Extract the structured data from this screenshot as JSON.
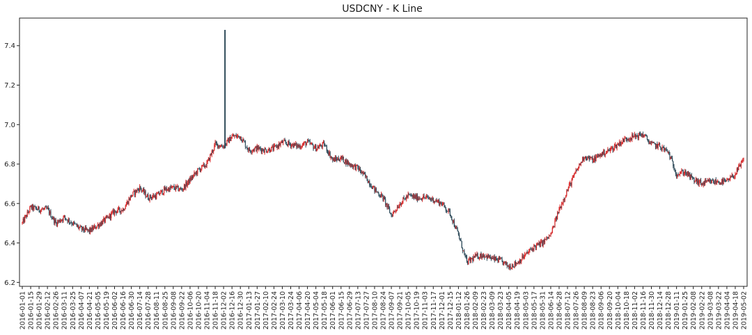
{
  "chart_data": {
    "type": "candlestick",
    "title": "USDCNY - K Line",
    "xlabel": "",
    "ylabel": "",
    "ylim": [
      6.18,
      7.54
    ],
    "y_ticks": [
      6.2,
      6.4,
      6.6,
      6.8,
      7.0,
      7.2,
      7.4
    ],
    "y_tick_labels": [
      "6.2",
      "6.4",
      "6.6",
      "6.8",
      "7.0",
      "7.2",
      "7.4"
    ],
    "x_tick_labels": [
      "2016-01-01",
      "2016-01-15",
      "2016-01-29",
      "2016-02-12",
      "2016-02-26",
      "2016-03-11",
      "2016-03-25",
      "2016-04-07",
      "2016-04-21",
      "2016-05-05",
      "2016-05-19",
      "2016-06-02",
      "2016-06-16",
      "2016-06-30",
      "2016-07-14",
      "2016-07-28",
      "2016-08-11",
      "2016-08-25",
      "2016-09-08",
      "2016-09-22",
      "2016-10-06",
      "2016-10-20",
      "2016-11-04",
      "2016-11-18",
      "2016-12-02",
      "2016-12-16",
      "2016-12-30",
      "2017-01-13",
      "2017-01-27",
      "2017-02-10",
      "2017-02-24",
      "2017-03-10",
      "2017-03-24",
      "2017-04-06",
      "2017-04-20",
      "2017-05-04",
      "2017-05-18",
      "2017-06-01",
      "2017-06-15",
      "2017-06-29",
      "2017-07-13",
      "2017-07-27",
      "2017-08-10",
      "2017-08-24",
      "2017-09-07",
      "2017-09-21",
      "2017-10-05",
      "2017-10-19",
      "2017-11-03",
      "2017-11-17",
      "2017-12-01",
      "2017-12-15",
      "2018-01-12",
      "2018-01-26",
      "2018-02-09",
      "2018-02-23",
      "2018-03-09",
      "2018-03-23",
      "2018-04-05",
      "2018-04-19",
      "2018-05-03",
      "2018-05-17",
      "2018-05-31",
      "2018-06-14",
      "2018-06-28",
      "2018-07-12",
      "2018-07-26",
      "2018-08-09",
      "2018-08-23",
      "2018-09-06",
      "2018-09-20",
      "2018-10-04",
      "2018-10-18",
      "2018-11-02",
      "2018-11-16",
      "2018-11-30",
      "2018-12-14",
      "2018-12-28",
      "2019-01-11",
      "2019-01-25",
      "2019-02-08",
      "2019-02-22",
      "2019-03-08",
      "2019-03-22",
      "2019-04-04",
      "2019-04-18",
      "2019-05-02"
    ],
    "close": [
      6.5,
      6.58,
      6.57,
      6.57,
      6.5,
      6.53,
      6.5,
      6.47,
      6.46,
      6.49,
      6.52,
      6.56,
      6.57,
      6.64,
      6.68,
      6.63,
      6.64,
      6.67,
      6.68,
      6.67,
      6.72,
      6.77,
      6.8,
      6.9,
      6.89,
      6.94,
      6.94,
      6.87,
      6.88,
      6.87,
      6.88,
      6.91,
      6.9,
      6.89,
      6.91,
      6.88,
      6.9,
      6.82,
      6.83,
      6.8,
      6.78,
      6.73,
      6.67,
      6.63,
      6.54,
      6.6,
      6.64,
      6.63,
      6.63,
      6.62,
      6.6,
      6.55,
      6.44,
      6.3,
      6.33,
      6.34,
      6.32,
      6.31,
      6.28,
      6.3,
      6.34,
      6.38,
      6.4,
      6.44,
      6.57,
      6.67,
      6.76,
      6.84,
      6.82,
      6.85,
      6.87,
      6.9,
      6.93,
      6.94,
      6.95,
      6.9,
      6.89,
      6.86,
      6.75,
      6.76,
      6.72,
      6.7,
      6.71,
      6.71,
      6.71,
      6.75,
      6.82
    ],
    "series_colors": {
      "up": "#d62728",
      "down": "#2f4b5a"
    },
    "annotations": {
      "spike_high": 7.48
    },
    "grid": false,
    "legend": "none"
  }
}
